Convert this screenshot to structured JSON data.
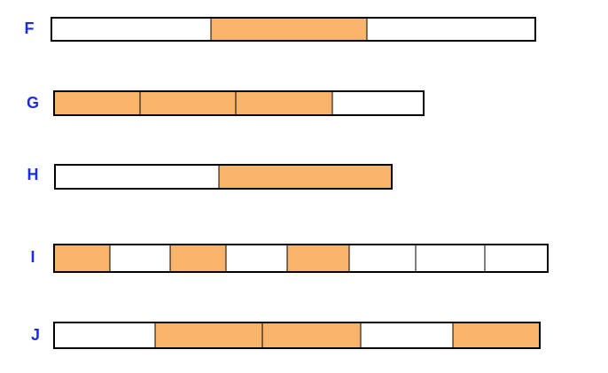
{
  "rows": [
    {
      "label": "F"
    },
    {
      "label": "G"
    },
    {
      "label": "H"
    },
    {
      "label": "I"
    },
    {
      "label": "J"
    }
  ]
}
